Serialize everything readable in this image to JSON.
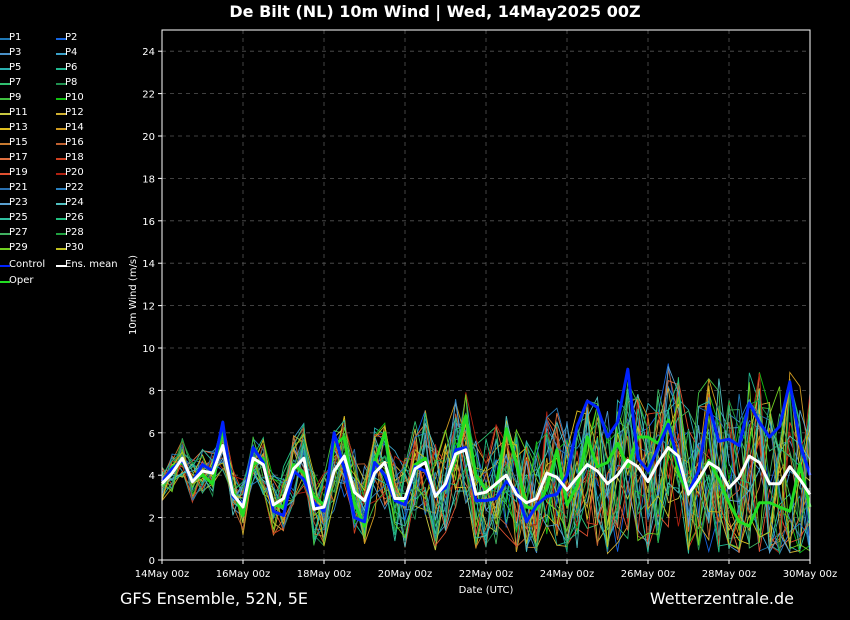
{
  "title": "De Bilt  (NL)  10m Wind | Wed, 14May2025 00Z",
  "footer": {
    "left": "GFS Ensemble, 52N, 5E",
    "right": "Wetterzentrale.de"
  },
  "chart_data": {
    "type": "line",
    "xlabel": "Date (UTC)",
    "ylabel": "10m Wind (m/s)",
    "ylim": [
      0,
      25
    ],
    "yticks": [
      0,
      2,
      4,
      6,
      8,
      10,
      12,
      14,
      16,
      18,
      20,
      22,
      24
    ],
    "xlim_hours": [
      0,
      384
    ],
    "x_step_hours": 6,
    "xticks": [
      {
        "hour": 0,
        "label": "14May 00z"
      },
      {
        "hour": 48,
        "label": "16May 00z"
      },
      {
        "hour": 96,
        "label": "18May 00z"
      },
      {
        "hour": 144,
        "label": "20May 00z"
      },
      {
        "hour": 192,
        "label": "22May 00z"
      },
      {
        "hour": 240,
        "label": "24May 00z"
      },
      {
        "hour": 288,
        "label": "26May 00z"
      },
      {
        "hour": 336,
        "label": "28May 00z"
      },
      {
        "hour": 384,
        "label": "30May 00z"
      }
    ],
    "grid": true,
    "legend_position": "left",
    "series": [
      {
        "name": "P1",
        "color": "#1f77b4"
      },
      {
        "name": "P2",
        "color": "#1565e0"
      },
      {
        "name": "P3",
        "color": "#4a90c8"
      },
      {
        "name": "P4",
        "color": "#3aa0c8"
      },
      {
        "name": "P5",
        "color": "#2ab0b0"
      },
      {
        "name": "P6",
        "color": "#20b890"
      },
      {
        "name": "P7",
        "color": "#30c070"
      },
      {
        "name": "P8",
        "color": "#209050"
      },
      {
        "name": "P9",
        "color": "#40c040"
      },
      {
        "name": "P10",
        "color": "#10c010"
      },
      {
        "name": "P11",
        "color": "#c8c840"
      },
      {
        "name": "P12",
        "color": "#d0b030"
      },
      {
        "name": "P13",
        "color": "#e0c020"
      },
      {
        "name": "P14",
        "color": "#d09a20"
      },
      {
        "name": "P15",
        "color": "#c87a30"
      },
      {
        "name": "P16",
        "color": "#c06030"
      },
      {
        "name": "P17",
        "color": "#e07040"
      },
      {
        "name": "P18",
        "color": "#d04020"
      },
      {
        "name": "P19",
        "color": "#e05030"
      },
      {
        "name": "P20",
        "color": "#b02010"
      },
      {
        "name": "P21",
        "color": "#2a70b0"
      },
      {
        "name": "P22",
        "color": "#2a80c0"
      },
      {
        "name": "P23",
        "color": "#5aa0d0"
      },
      {
        "name": "P24",
        "color": "#50c0c0"
      },
      {
        "name": "P25",
        "color": "#30c0a0"
      },
      {
        "name": "P26",
        "color": "#20c080"
      },
      {
        "name": "P27",
        "color": "#40b060"
      },
      {
        "name": "P28",
        "color": "#20a040"
      },
      {
        "name": "P29",
        "color": "#70d020"
      },
      {
        "name": "P30",
        "color": "#c0c020"
      },
      {
        "name": "Control",
        "color": "#0022ff",
        "width": 3,
        "values": [
          3.7,
          4.3,
          4.7,
          3.7,
          4.5,
          4.2,
          6.5,
          3.0,
          2.6,
          5.3,
          4.6,
          2.3,
          2.1,
          4.2,
          3.8,
          2.7,
          2.3,
          6.0,
          4.3,
          2.0,
          1.8,
          4.6,
          4.0,
          2.8,
          2.6,
          4.4,
          4.2,
          3.1,
          3.4,
          5.2,
          5.3,
          2.8,
          2.8,
          2.9,
          3.7,
          3.3,
          1.8,
          2.6,
          3.0,
          3.1,
          4.0,
          6.3,
          7.5,
          7.2,
          5.8,
          6.5,
          9.0,
          4.8,
          4.2,
          5.3,
          6.4,
          4.6,
          3.2,
          4.2,
          7.3,
          5.6,
          5.7,
          5.4,
          7.4,
          6.5,
          5.8,
          6.3,
          8.4,
          5.5,
          4.0
        ]
      },
      {
        "name": "Ens. mean",
        "color": "#ffffff",
        "width": 3,
        "values": [
          3.6,
          4.1,
          4.8,
          3.7,
          4.2,
          4.1,
          5.4,
          3.1,
          2.5,
          4.8,
          4.5,
          2.6,
          2.9,
          4.3,
          4.8,
          2.4,
          2.5,
          4.2,
          4.9,
          3.2,
          2.8,
          4.1,
          4.6,
          2.9,
          2.9,
          4.3,
          4.6,
          3.0,
          3.6,
          5.0,
          5.2,
          3.1,
          3.2,
          3.6,
          4.0,
          3.1,
          2.7,
          2.9,
          4.1,
          3.9,
          3.3,
          3.9,
          4.5,
          4.2,
          3.6,
          4.0,
          4.7,
          4.4,
          3.7,
          4.6,
          5.3,
          4.9,
          3.1,
          3.8,
          4.6,
          4.3,
          3.4,
          3.9,
          4.9,
          4.6,
          3.6,
          3.6,
          4.4,
          3.8,
          3.1
        ]
      },
      {
        "name": "Oper",
        "color": "#22dd22",
        "width": 3,
        "values": [
          3.5,
          4.4,
          4.6,
          3.8,
          4.0,
          3.6,
          6.3,
          3.3,
          2.1,
          4.5,
          4.8,
          2.6,
          2.5,
          4.5,
          4.1,
          3.0,
          2.6,
          5.4,
          5.8,
          2.7,
          1.6,
          4.6,
          6.0,
          2.8,
          2.8,
          4.5,
          4.8,
          3.0,
          3.5,
          4.8,
          6.8,
          4.0,
          3.3,
          3.5,
          6.2,
          4.6,
          2.5,
          2.4,
          3.4,
          5.2,
          2.6,
          3.5,
          5.8,
          4.4,
          4.6,
          5.5,
          4.4,
          5.8,
          5.8,
          5.5,
          6.6,
          4.1,
          3.1,
          3.7,
          4.7,
          3.8,
          2.7,
          1.8,
          1.6,
          2.7,
          2.7,
          2.5,
          2.3,
          4.5,
          2.5
        ]
      }
    ]
  }
}
